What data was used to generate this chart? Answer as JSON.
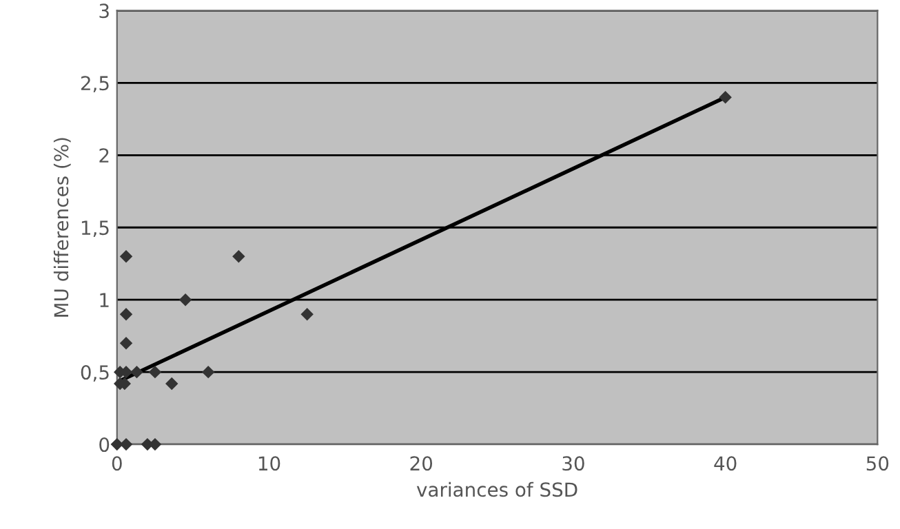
{
  "chart_data": {
    "type": "scatter",
    "xlabel": "variances of SSD",
    "ylabel": "MU differences (%)",
    "xlim": [
      0,
      50
    ],
    "ylim": [
      0,
      3
    ],
    "xticks": [
      0,
      10,
      20,
      30,
      40,
      50
    ],
    "yticks": [
      0,
      {
        "value": 0.5,
        "label": "0,5"
      },
      1,
      {
        "value": 1.5,
        "label": "1,5"
      },
      2,
      {
        "value": 2.5,
        "label": "2,5"
      },
      3
    ],
    "grid": "y",
    "marker": "diamond",
    "legend": false,
    "series": [
      {
        "color": "#333333",
        "x": [
          0,
          0.6,
          2,
          2.5,
          0.6,
          8,
          4.5,
          0.6,
          12.5,
          0.6,
          0.2,
          0.6,
          1.3,
          2.5,
          6,
          0.2,
          0.5,
          3.6,
          40
        ],
        "values": [
          0,
          0,
          0,
          0,
          1.3,
          1.3,
          1.0,
          0.9,
          0.9,
          0.7,
          0.5,
          0.5,
          0.5,
          0.5,
          0.5,
          0.42,
          0.42,
          0.42,
          2.4
        ]
      },
      {
        "type": "line",
        "color": "#000000",
        "x": [
          0,
          40
        ],
        "values": [
          0.43,
          2.4
        ],
        "marker": "none",
        "line_style": "solid"
      }
    ]
  }
}
